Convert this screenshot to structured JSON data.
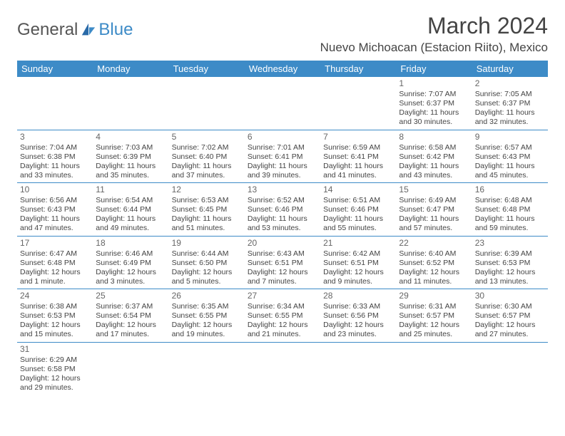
{
  "logo": {
    "text1": "General",
    "text2": "Blue"
  },
  "title": "March 2024",
  "location": "Nuevo Michoacan (Estacion Riito), Mexico",
  "colors": {
    "accent": "#3d8bc7",
    "text": "#444",
    "bg": "#ffffff"
  },
  "weekdays": [
    "Sunday",
    "Monday",
    "Tuesday",
    "Wednesday",
    "Thursday",
    "Friday",
    "Saturday"
  ],
  "weeks": [
    [
      null,
      null,
      null,
      null,
      null,
      {
        "n": "1",
        "sr": "7:07 AM",
        "ss": "6:37 PM",
        "dl": "11 hours and 30 minutes."
      },
      {
        "n": "2",
        "sr": "7:05 AM",
        "ss": "6:37 PM",
        "dl": "11 hours and 32 minutes."
      }
    ],
    [
      {
        "n": "3",
        "sr": "7:04 AM",
        "ss": "6:38 PM",
        "dl": "11 hours and 33 minutes."
      },
      {
        "n": "4",
        "sr": "7:03 AM",
        "ss": "6:39 PM",
        "dl": "11 hours and 35 minutes."
      },
      {
        "n": "5",
        "sr": "7:02 AM",
        "ss": "6:40 PM",
        "dl": "11 hours and 37 minutes."
      },
      {
        "n": "6",
        "sr": "7:01 AM",
        "ss": "6:41 PM",
        "dl": "11 hours and 39 minutes."
      },
      {
        "n": "7",
        "sr": "6:59 AM",
        "ss": "6:41 PM",
        "dl": "11 hours and 41 minutes."
      },
      {
        "n": "8",
        "sr": "6:58 AM",
        "ss": "6:42 PM",
        "dl": "11 hours and 43 minutes."
      },
      {
        "n": "9",
        "sr": "6:57 AM",
        "ss": "6:43 PM",
        "dl": "11 hours and 45 minutes."
      }
    ],
    [
      {
        "n": "10",
        "sr": "6:56 AM",
        "ss": "6:43 PM",
        "dl": "11 hours and 47 minutes."
      },
      {
        "n": "11",
        "sr": "6:54 AM",
        "ss": "6:44 PM",
        "dl": "11 hours and 49 minutes."
      },
      {
        "n": "12",
        "sr": "6:53 AM",
        "ss": "6:45 PM",
        "dl": "11 hours and 51 minutes."
      },
      {
        "n": "13",
        "sr": "6:52 AM",
        "ss": "6:46 PM",
        "dl": "11 hours and 53 minutes."
      },
      {
        "n": "14",
        "sr": "6:51 AM",
        "ss": "6:46 PM",
        "dl": "11 hours and 55 minutes."
      },
      {
        "n": "15",
        "sr": "6:49 AM",
        "ss": "6:47 PM",
        "dl": "11 hours and 57 minutes."
      },
      {
        "n": "16",
        "sr": "6:48 AM",
        "ss": "6:48 PM",
        "dl": "11 hours and 59 minutes."
      }
    ],
    [
      {
        "n": "17",
        "sr": "6:47 AM",
        "ss": "6:48 PM",
        "dl": "12 hours and 1 minute."
      },
      {
        "n": "18",
        "sr": "6:46 AM",
        "ss": "6:49 PM",
        "dl": "12 hours and 3 minutes."
      },
      {
        "n": "19",
        "sr": "6:44 AM",
        "ss": "6:50 PM",
        "dl": "12 hours and 5 minutes."
      },
      {
        "n": "20",
        "sr": "6:43 AM",
        "ss": "6:51 PM",
        "dl": "12 hours and 7 minutes."
      },
      {
        "n": "21",
        "sr": "6:42 AM",
        "ss": "6:51 PM",
        "dl": "12 hours and 9 minutes."
      },
      {
        "n": "22",
        "sr": "6:40 AM",
        "ss": "6:52 PM",
        "dl": "12 hours and 11 minutes."
      },
      {
        "n": "23",
        "sr": "6:39 AM",
        "ss": "6:53 PM",
        "dl": "12 hours and 13 minutes."
      }
    ],
    [
      {
        "n": "24",
        "sr": "6:38 AM",
        "ss": "6:53 PM",
        "dl": "12 hours and 15 minutes."
      },
      {
        "n": "25",
        "sr": "6:37 AM",
        "ss": "6:54 PM",
        "dl": "12 hours and 17 minutes."
      },
      {
        "n": "26",
        "sr": "6:35 AM",
        "ss": "6:55 PM",
        "dl": "12 hours and 19 minutes."
      },
      {
        "n": "27",
        "sr": "6:34 AM",
        "ss": "6:55 PM",
        "dl": "12 hours and 21 minutes."
      },
      {
        "n": "28",
        "sr": "6:33 AM",
        "ss": "6:56 PM",
        "dl": "12 hours and 23 minutes."
      },
      {
        "n": "29",
        "sr": "6:31 AM",
        "ss": "6:57 PM",
        "dl": "12 hours and 25 minutes."
      },
      {
        "n": "30",
        "sr": "6:30 AM",
        "ss": "6:57 PM",
        "dl": "12 hours and 27 minutes."
      }
    ],
    [
      {
        "n": "31",
        "sr": "6:29 AM",
        "ss": "6:58 PM",
        "dl": "12 hours and 29 minutes."
      },
      null,
      null,
      null,
      null,
      null,
      null
    ]
  ],
  "labels": {
    "sunrise": "Sunrise:",
    "sunset": "Sunset:",
    "daylight": "Daylight:"
  }
}
